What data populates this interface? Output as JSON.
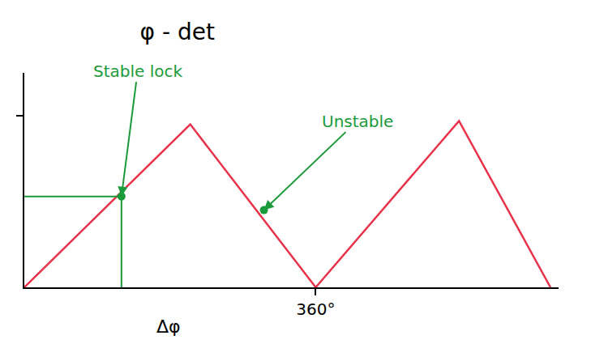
{
  "chart_data": {
    "type": "line",
    "title": "φ - det",
    "x_label": "Δφ",
    "x": [
      0,
      205,
      360,
      537,
      650
    ],
    "values": [
      0,
      0.95,
      0,
      0.97,
      0
    ],
    "color": "#e8324a",
    "xlim": [
      0,
      660
    ],
    "xticks": [
      {
        "value": 360,
        "label": "360°"
      }
    ],
    "ylim": [
      0,
      1.25
    ],
    "yticks": [
      1
    ],
    "tick_labels": "x",
    "grid": false,
    "annotations": [
      {
        "text": "Stable lock",
        "x": 120,
        "y": 0.53,
        "color": "#1a9a3a"
      },
      {
        "text": "Unstable",
        "x": 296,
        "y": 0.45,
        "color": "#1a9a3a"
      }
    ]
  }
}
